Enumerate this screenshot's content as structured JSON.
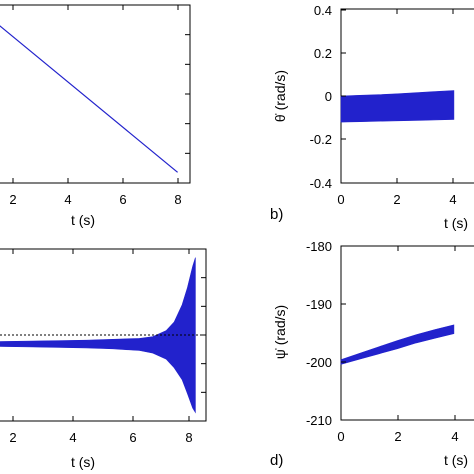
{
  "chart_data": [
    {
      "panel": "a",
      "type": "line",
      "xlim": [
        0,
        8.5
      ],
      "ylim": [
        -1,
        1
      ],
      "x_ticks": [
        "2",
        "4",
        "6",
        "8"
      ],
      "y_ticks": [],
      "xlabel": "t (s)",
      "ylabel": "",
      "panel_label": "",
      "series": [
        {
          "type": "line",
          "color": "#2222cc",
          "x": [
            0,
            8
          ],
          "y": [
            0.95,
            -0.88
          ]
        }
      ]
    },
    {
      "panel": "b",
      "type": "line",
      "xlim": [
        0,
        8.5
      ],
      "ylim": [
        -0.4,
        0.4
      ],
      "x_ticks": [
        "0",
        "2",
        "4"
      ],
      "y_ticks": [
        "0.4",
        "0.2",
        "0",
        "-0.2",
        "-0.4"
      ],
      "xlabel": "t (s)",
      "ylabel": "θ̇ (rad/s)",
      "panel_label": "b)",
      "series": [
        {
          "type": "band",
          "color": "#2222cc",
          "x": [
            0,
            1,
            2,
            3,
            4,
            5,
            6
          ],
          "upper": [
            0.0,
            0.003,
            0.006,
            0.01,
            0.015,
            0.02,
            0.025
          ],
          "lower": [
            -0.12,
            -0.118,
            -0.116,
            -0.114,
            -0.112,
            -0.11,
            -0.108
          ]
        }
      ]
    },
    {
      "panel": "c",
      "type": "line",
      "xlim": [
        0,
        8.5
      ],
      "ylim": [
        -1,
        1
      ],
      "x_ticks": [
        "2",
        "4",
        "6",
        "8"
      ],
      "y_ticks": [],
      "xlabel": "t (s)",
      "ylabel": "",
      "panel_label": "",
      "series": [
        {
          "type": "band",
          "color": "#2222cc",
          "x": [
            0,
            2,
            4,
            5,
            6,
            6.5,
            7,
            7.3,
            7.6,
            7.8,
            8.0,
            8.1
          ],
          "upper": [
            -0.08,
            -0.07,
            -0.06,
            -0.05,
            -0.04,
            -0.02,
            0.05,
            0.15,
            0.35,
            0.55,
            0.8,
            0.9
          ],
          "lower": [
            -0.13,
            -0.14,
            -0.15,
            -0.16,
            -0.18,
            -0.21,
            -0.28,
            -0.38,
            -0.52,
            -0.68,
            -0.85,
            -0.9
          ]
        },
        {
          "type": "hline",
          "color": "#000000",
          "dashed": true,
          "y": 0
        }
      ]
    },
    {
      "panel": "d",
      "type": "line",
      "xlim": [
        0,
        8.5
      ],
      "ylim": [
        -210,
        -180
      ],
      "x_ticks": [
        "0",
        "2",
        "4"
      ],
      "y_ticks": [
        "-180",
        "-190",
        "-200",
        "-210"
      ],
      "xlabel": "t (s)",
      "ylabel": "ψ̇ (rad/s)",
      "panel_label": "d)",
      "series": [
        {
          "type": "band",
          "color": "#2222cc",
          "x": [
            0,
            1,
            2,
            3,
            4,
            5,
            6
          ],
          "upper": [
            -199.6,
            -198.5,
            -197.4,
            -196.3,
            -195.3,
            -194.4,
            -193.6
          ],
          "lower": [
            -200.4,
            -199.5,
            -198.6,
            -197.7,
            -196.7,
            -195.9,
            -195.1
          ]
        }
      ]
    }
  ]
}
